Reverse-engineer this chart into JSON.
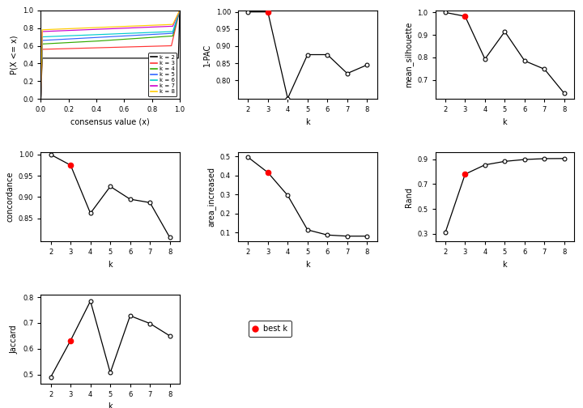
{
  "k_values": [
    2,
    3,
    4,
    5,
    6,
    7,
    8
  ],
  "pac_1minus": [
    1.0,
    1.0,
    0.747,
    0.875,
    0.875,
    0.82,
    0.845
  ],
  "pac_best_k": 3,
  "mean_silhouette": [
    1.0,
    0.983,
    0.793,
    0.915,
    0.785,
    0.748,
    0.64
  ],
  "sil_best_k": 3,
  "concordance": [
    1.0,
    0.975,
    0.862,
    0.925,
    0.895,
    0.887,
    0.805
  ],
  "conc_best_k": 3,
  "area_increased": [
    0.495,
    0.415,
    0.295,
    0.115,
    0.088,
    0.082,
    0.082
  ],
  "area_best_k": 3,
  "Rand": [
    0.31,
    0.78,
    0.855,
    0.883,
    0.898,
    0.905,
    0.906
  ],
  "rand_best_k": 3,
  "Jaccard": [
    0.49,
    0.632,
    0.785,
    0.507,
    0.728,
    0.698,
    0.65
  ],
  "jacc_best_k": 3,
  "ecdf_colors": [
    "#000000",
    "#FF3333",
    "#33AA00",
    "#3366FF",
    "#00CCCC",
    "#CC00CC",
    "#FFCC00"
  ],
  "ecdf_labels": [
    "k = 2",
    "k = 3",
    "k = 4",
    "k = 5",
    "k = 6",
    "k = 7",
    "k = 8"
  ],
  "background_color": "#FFFFFF"
}
